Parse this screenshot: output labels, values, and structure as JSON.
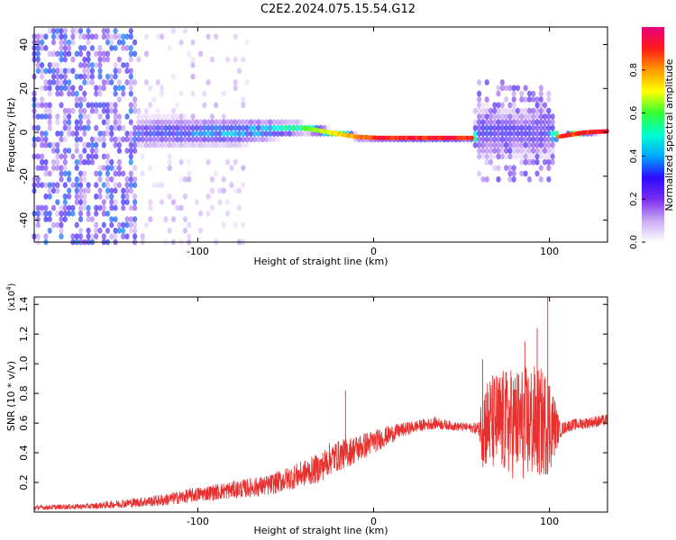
{
  "title": "C2E2.2024.075.15.54.G12",
  "chart_data": [
    {
      "type": "heatmap",
      "xlabel": "Height of straight line (km)",
      "ylabel": "Frequency (Hz)",
      "xlim": [
        -193,
        133
      ],
      "ylim": [
        -50,
        48
      ],
      "xticks": [
        -100,
        0,
        100
      ],
      "yticks": [
        -40,
        -20,
        0,
        20,
        40
      ],
      "colorbar": {
        "label": "Normalized spectral amplitude",
        "range": [
          0,
          1
        ],
        "ticks": [
          0.0,
          0.2,
          0.4,
          0.6,
          0.8
        ],
        "colormap": [
          "#ffffff",
          "#c9a8f2",
          "#7b2cf0",
          "#2a0bff",
          "#00a8ff",
          "#00ffd0",
          "#33ff33",
          "#ffff00",
          "#ff9900",
          "#ff1a1a",
          "#e6007a"
        ]
      },
      "ridge": [
        {
          "x": -135,
          "f": 0,
          "w": 9,
          "amp": 0.35
        },
        {
          "x": -120,
          "f": 0,
          "w": 9,
          "amp": 0.38
        },
        {
          "x": -100,
          "f": 0,
          "w": 8,
          "amp": 0.42
        },
        {
          "x": -80,
          "f": 0,
          "w": 8,
          "amp": 0.45
        },
        {
          "x": -60,
          "f": 1,
          "w": 6,
          "amp": 0.5
        },
        {
          "x": -40,
          "f": 2,
          "w": 3,
          "amp": 0.65
        },
        {
          "x": -25,
          "f": 0,
          "w": 2,
          "amp": 0.75
        },
        {
          "x": -10,
          "f": -2,
          "w": 1.5,
          "amp": 0.82
        },
        {
          "x": 2,
          "f": -2.5,
          "w": 1,
          "amp": 0.95
        },
        {
          "x": 40,
          "f": -2.5,
          "w": 1,
          "amp": 0.95
        },
        {
          "x": 56,
          "f": -2.5,
          "w": 1,
          "amp": 0.95
        },
        {
          "x": 60,
          "f": 0,
          "w": 15,
          "amp": 0.35
        },
        {
          "x": 80,
          "f": 0,
          "w": 14,
          "amp": 0.33
        },
        {
          "x": 100,
          "f": 0,
          "w": 14,
          "amp": 0.35
        },
        {
          "x": 105,
          "f": -2,
          "w": 1,
          "amp": 0.9
        },
        {
          "x": 120,
          "f": 0,
          "w": 1,
          "amp": 0.95
        },
        {
          "x": 133,
          "f": 0.5,
          "w": 1,
          "amp": 0.95
        }
      ]
    },
    {
      "type": "line",
      "xlabel": "Height of straight line (km)",
      "ylabel": "SNR (10 * v/v)",
      "yscale_note": "(x10⁴)",
      "yscale_base": "(x10",
      "yscale_exp": "4",
      "xlim": [
        -193,
        133
      ],
      "ylim": [
        0,
        1.45
      ],
      "xticks": [
        -100,
        0,
        100
      ],
      "yticks": [
        0.2,
        0.4,
        0.6,
        0.8,
        1.0,
        1.2,
        1.4
      ],
      "color": "#e8302f",
      "series": [
        {
          "x": [
            -193,
            -160,
            -140,
            -120,
            -100,
            -80,
            -60,
            -50,
            -40,
            -30,
            -25,
            -15,
            -5,
            5,
            15,
            25,
            35,
            45,
            55,
            60,
            62,
            70,
            80,
            90,
            100,
            106,
            110,
            120,
            133
          ],
          "y": [
            0.03,
            0.04,
            0.06,
            0.08,
            0.12,
            0.15,
            0.18,
            0.22,
            0.26,
            0.3,
            0.36,
            0.4,
            0.45,
            0.5,
            0.55,
            0.58,
            0.6,
            0.58,
            0.57,
            0.56,
            0.6,
            0.6,
            0.6,
            0.6,
            0.6,
            0.55,
            0.58,
            0.6,
            0.62
          ],
          "noise": [
            0.015,
            0.02,
            0.03,
            0.04,
            0.05,
            0.06,
            0.07,
            0.08,
            0.09,
            0.1,
            0.11,
            0.1,
            0.09,
            0.07,
            0.05,
            0.04,
            0.04,
            0.03,
            0.03,
            0.05,
            0.3,
            0.35,
            0.38,
            0.4,
            0.35,
            0.05,
            0.04,
            0.04,
            0.04
          ]
        }
      ],
      "spikes": [
        {
          "x": -16,
          "y": 0.82
        },
        {
          "x": 62,
          "y": 1.03
        },
        {
          "x": 99,
          "y": 1.45
        },
        {
          "x": 93,
          "y": 1.24
        },
        {
          "x": 86,
          "y": 1.15
        }
      ]
    }
  ]
}
